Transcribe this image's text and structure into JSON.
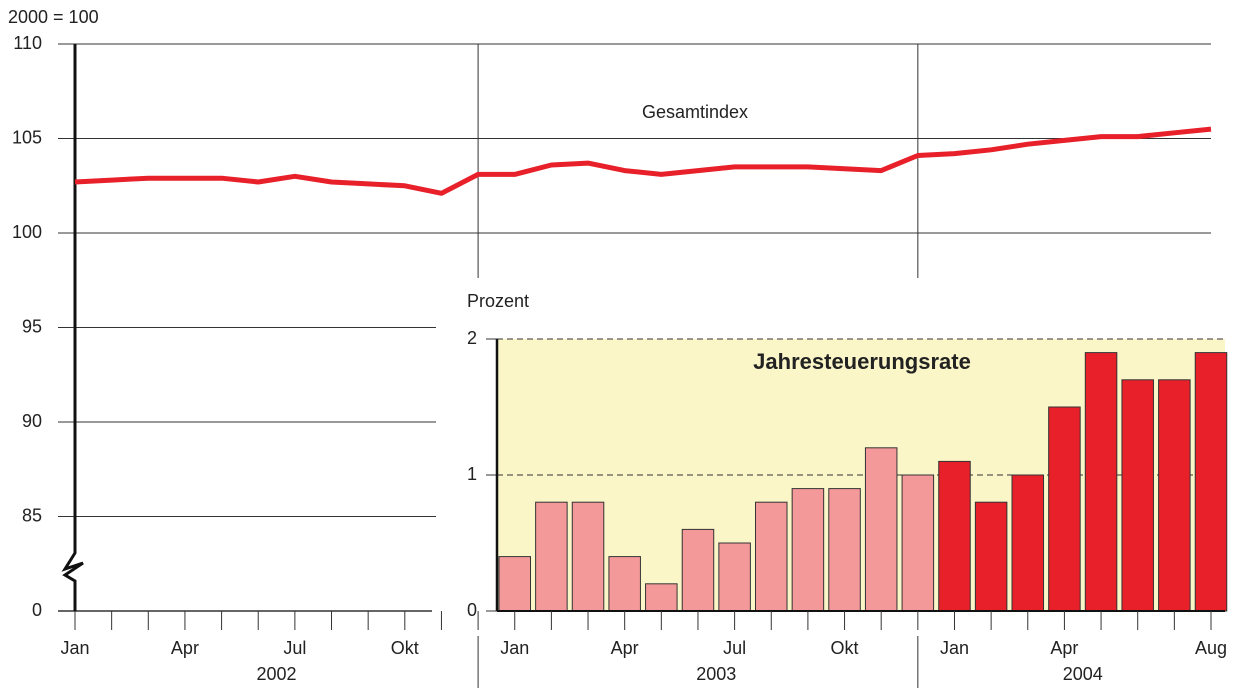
{
  "chart_data": [
    {
      "type": "line",
      "y_label": "2000 = 100",
      "annotation": "Gesamtindex",
      "categories": [
        "Jan",
        null,
        null,
        "Apr",
        null,
        null,
        "Jul",
        null,
        null,
        "Okt",
        null,
        null,
        "Jan",
        null,
        null,
        "Apr",
        null,
        null,
        "Jul",
        null,
        null,
        "Okt",
        null,
        null,
        "Jan",
        null,
        null,
        "Apr",
        null,
        null,
        null,
        "Aug"
      ],
      "groups": [
        {
          "label": "2002",
          "from": 0,
          "to": 11
        },
        {
          "label": "2003",
          "from": 12,
          "to": 23
        },
        {
          "label": "2004",
          "from": 24,
          "to": 31
        }
      ],
      "values": [
        102.7,
        102.8,
        102.9,
        102.9,
        102.9,
        102.7,
        103.0,
        102.7,
        102.6,
        102.5,
        102.1,
        103.1,
        103.1,
        103.6,
        103.7,
        103.3,
        103.1,
        103.3,
        103.5,
        103.5,
        103.5,
        103.4,
        103.3,
        104.1,
        104.2,
        104.4,
        104.7,
        104.9,
        105.1,
        105.1,
        105.3,
        105.5
      ],
      "color": "#e8202a",
      "ylim": [
        0,
        110
      ],
      "yticks": [
        0,
        85,
        90,
        95,
        100,
        105,
        110
      ],
      "axis_break": true,
      "grid": true
    },
    {
      "type": "bar",
      "title": "Jahresteuerungsrate",
      "y_label": "Prozent",
      "values": [
        null,
        null,
        null,
        null,
        null,
        null,
        null,
        null,
        null,
        null,
        null,
        null,
        0.4,
        0.8,
        0.8,
        0.4,
        0.2,
        0.6,
        0.5,
        0.8,
        0.9,
        0.9,
        1.2,
        1.0,
        1.1,
        0.8,
        1.0,
        1.5,
        1.9,
        1.7,
        1.7,
        1.9
      ],
      "colors": [
        null,
        null,
        null,
        null,
        null,
        null,
        null,
        null,
        null,
        null,
        null,
        null,
        "#f4999a",
        "#f4999a",
        "#f4999a",
        "#f4999a",
        "#f4999a",
        "#f4999a",
        "#f4999a",
        "#f4999a",
        "#f4999a",
        "#f4999a",
        "#f4999a",
        "#f4999a",
        "#e8202a",
        "#e8202a",
        "#e8202a",
        "#e8202a",
        "#e8202a",
        "#e8202a",
        "#e8202a",
        "#e8202a"
      ],
      "background": "#faf6c8",
      "ylim": [
        0,
        2
      ],
      "yticks": [
        0,
        1,
        2
      ],
      "grid": true
    }
  ]
}
